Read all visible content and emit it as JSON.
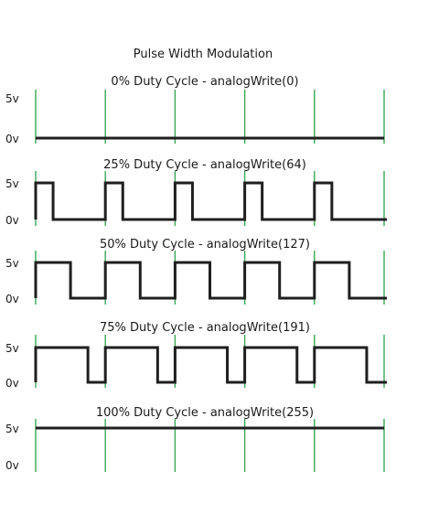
{
  "title": "Pulse Width Modulation",
  "colors": {
    "signal": "#1f1f1f",
    "period_marker": "#3aa655",
    "text": "#1a1a1a"
  },
  "panels": [
    {
      "caption": "0% Duty Cycle - analogWrite(0)",
      "high_label": "5v",
      "low_label": "0v",
      "duty": 0,
      "analog_value": 0
    },
    {
      "caption": "25% Duty Cycle - analogWrite(64)",
      "high_label": "5v",
      "low_label": "0v",
      "duty": 0.25,
      "analog_value": 64
    },
    {
      "caption": "50% Duty Cycle - analogWrite(127)",
      "high_label": "5v",
      "low_label": "0v",
      "duty": 0.5,
      "analog_value": 127
    },
    {
      "caption": "75% Duty Cycle - analogWrite(191)",
      "high_label": "5v",
      "low_label": "0v",
      "duty": 0.75,
      "analog_value": 191
    },
    {
      "caption": "100% Duty Cycle - analogWrite(255)",
      "high_label": "5v",
      "low_label": "0v",
      "duty": 1,
      "analog_value": 255
    }
  ],
  "periods": 5
}
